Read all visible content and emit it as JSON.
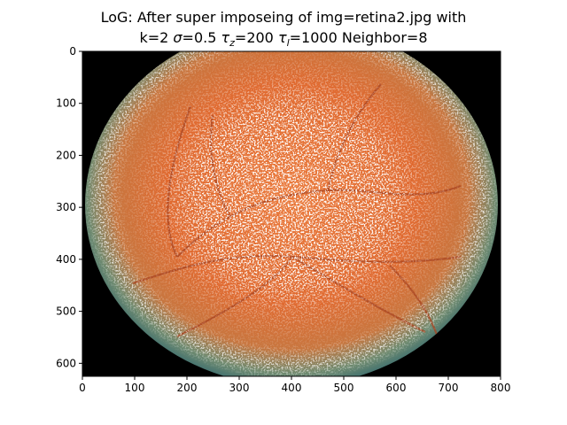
{
  "chart_data": {
    "type": "image",
    "title_line1": "LoG: After super imposeing of img=retina2.jpg with",
    "title_line2_parts": {
      "k": "k=2 ",
      "sigma_sym": "σ",
      "sigma_val": "=0.5 ",
      "tau": "τ",
      "z_sub": "z",
      "z_val": "=200 ",
      "l_sub": "l",
      "l_val": "=1000 Neighbor=8"
    },
    "xlim": [
      0,
      800
    ],
    "ylim": [
      625,
      0
    ],
    "xticks": [
      0,
      100,
      200,
      300,
      400,
      500,
      600,
      700,
      800
    ],
    "yticks": [
      0,
      100,
      200,
      300,
      400,
      500,
      600
    ],
    "xtick_labels": [
      "0",
      "100",
      "200",
      "300",
      "400",
      "500",
      "600",
      "700",
      "800"
    ],
    "ytick_labels": [
      "0",
      "100",
      "200",
      "300",
      "400",
      "500",
      "600"
    ],
    "image_description_colors": {
      "background": "#000000",
      "fundus_center": "#e8753a",
      "fundus_edge": "#2f6d75",
      "edges": "#ffffff",
      "vessels": "#a8431f"
    }
  }
}
